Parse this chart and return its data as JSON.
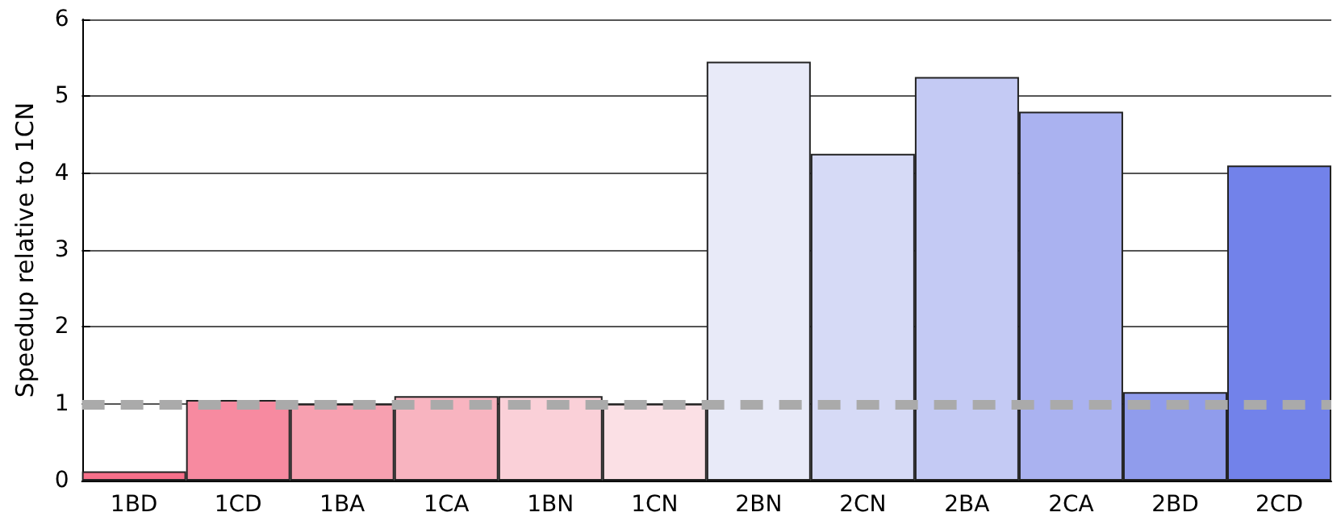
{
  "chart_data": {
    "type": "bar",
    "ylabel": "Speedup relative to 1CN",
    "categories": [
      "1BD",
      "1CD",
      "1BA",
      "1CA",
      "1BN",
      "1CN",
      "2BN",
      "2CN",
      "2BA",
      "2CA",
      "2BD",
      "2CD"
    ],
    "values": [
      0.12,
      1.05,
      1.0,
      1.1,
      1.1,
      1.0,
      5.45,
      4.25,
      5.25,
      4.8,
      1.15,
      4.1
    ],
    "colors": [
      "#f7708a",
      "#f78aa0",
      "#f7a0b0",
      "#f8b4c0",
      "#fad0d8",
      "#fbe0e5",
      "#e8eaf8",
      "#d6daf6",
      "#c4caf4",
      "#aab2f0",
      "#909cec",
      "#7282ea"
    ],
    "ylim": [
      0,
      6
    ],
    "yticks": [
      0,
      1,
      2,
      3,
      4,
      5,
      6
    ],
    "grid": "y",
    "ref_lines": [
      {
        "axis": "y",
        "value": 1,
        "color": "#aaaaaa",
        "line_style": "dashed"
      }
    ]
  }
}
